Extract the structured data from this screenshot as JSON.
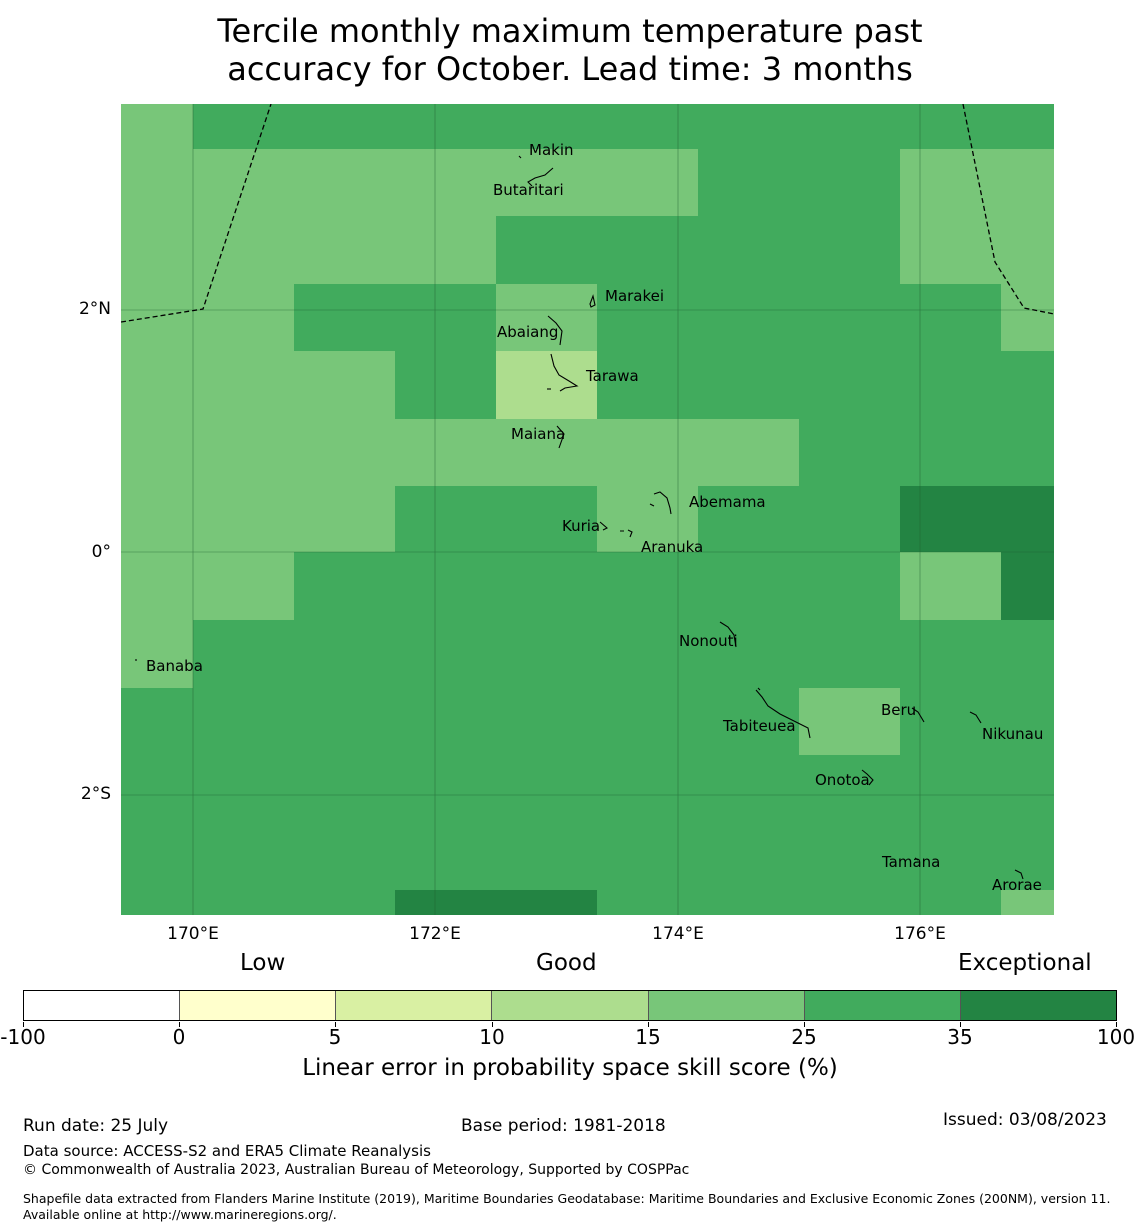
{
  "title": {
    "line1": "Tercile monthly maximum temperature past",
    "line2": "accuracy for October. Lead time: 3 months"
  },
  "map": {
    "lat_labels": [
      "2°N",
      "0°",
      "2°S"
    ],
    "lon_labels": [
      "170°E",
      "172°E",
      "174°E",
      "176°E"
    ],
    "island_labels": [
      "Makin",
      "Butaritari",
      "Marakei",
      "Abaiang",
      "Tarawa",
      "Maiana",
      "Abemama",
      "Kuria",
      "Aranuka",
      "Nonouti",
      "Banaba",
      "Tabiteuea",
      "Beru",
      "Nikunau",
      "Onotoa",
      "Tamana",
      "Arorae"
    ]
  },
  "legend": {
    "categories": [
      "Low",
      "Good",
      "Exceptional"
    ],
    "colors": [
      "#ffffff",
      "#ffffcc",
      "#d9f0a3",
      "#addd8e",
      "#78c679",
      "#41ab5d",
      "#238443"
    ],
    "ticks": [
      "-100",
      "0",
      "5",
      "10",
      "15",
      "25",
      "35",
      "100"
    ],
    "caption": "Linear error in probability space skill score (%)"
  },
  "footer": {
    "run_date": "Run date: 25 July",
    "base_period": "Base period: 1981-2018",
    "issued": "Issued: 03/08/2023",
    "data_source": "Data source: ACCESS-S2 and ERA5 Climate Reanalysis",
    "copyright": "© Commonwealth of Australia 2023, Australian Bureau of Meteorology, Supported by COSPPac",
    "shapefile": "Shapefile data extracted from Flanders Marine Institute (2019), Maritime Boundaries Geodatabase: Maritime Boundaries and Exclusive Economic Zones (200NM), version 11. Available online at http://www.marineregions.org/."
  }
}
